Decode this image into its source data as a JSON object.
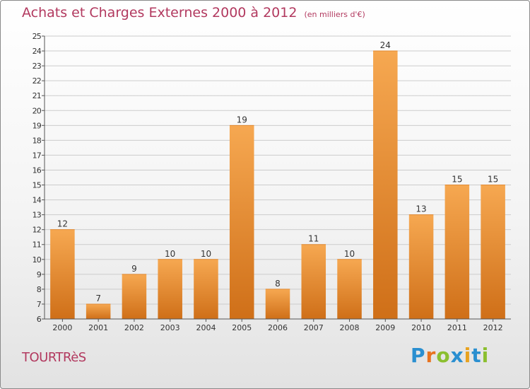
{
  "title": "Achats et Charges Externes 2000 à 2012",
  "subtitle": "(en milliers d'€)",
  "commune": "TOURTRèS",
  "logo": {
    "letters": [
      "P",
      "r",
      "o",
      "x",
      "i",
      "t",
      "i"
    ],
    "colors": [
      "#2a8fd0",
      "#e8731f",
      "#8bbf2f",
      "#2a8fd0",
      "#e8a21f",
      "#2a8fd0",
      "#8bbf2f"
    ]
  },
  "colors": {
    "bar_light": "#f6a851",
    "bar_dark": "#cf6f18",
    "grid": "#cccccc",
    "axis": "#555555"
  },
  "chart_data": {
    "type": "bar",
    "title": "Achats et Charges Externes 2000 à 2012",
    "subtitle": "(en milliers d'€)",
    "categories": [
      "2000",
      "2001",
      "2002",
      "2003",
      "2004",
      "2005",
      "2006",
      "2007",
      "2008",
      "2009",
      "2010",
      "2011",
      "2012"
    ],
    "values": [
      12,
      7,
      9,
      10,
      10,
      19,
      8,
      11,
      10,
      24,
      13,
      15,
      15
    ],
    "ylim": [
      6,
      25
    ],
    "yticks": [
      6,
      7,
      8,
      9,
      10,
      11,
      12,
      13,
      14,
      15,
      16,
      17,
      18,
      19,
      20,
      21,
      22,
      23,
      24,
      25
    ],
    "grid": true,
    "data_labels": true
  }
}
